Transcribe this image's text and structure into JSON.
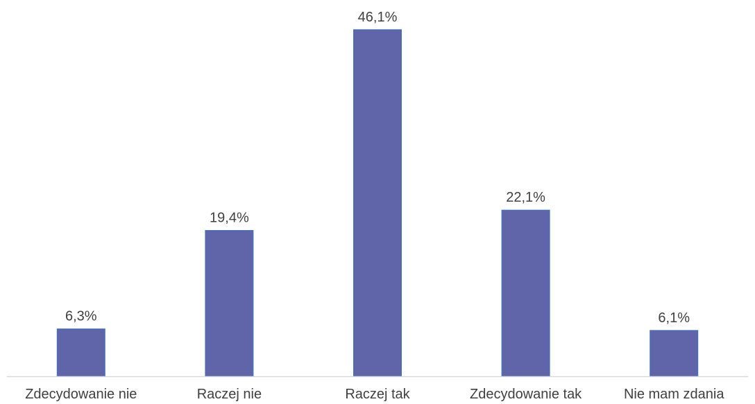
{
  "chart_data": {
    "type": "bar",
    "categories": [
      "Zdecydowanie nie",
      "Raczej nie",
      "Raczej tak",
      "Zdecydowanie tak",
      "Nie mam zdania"
    ],
    "values": [
      6.3,
      19.4,
      46.1,
      22.1,
      6.1
    ],
    "data_labels": [
      "6,3%",
      "19,4%",
      "46,1%",
      "22,1%",
      "6,1%"
    ],
    "title": "",
    "xlabel": "",
    "ylabel": "",
    "ylim": [
      0,
      50
    ],
    "grid": false,
    "legend": "none",
    "colors": {
      "bar": "#6064a8",
      "bar_border": "#3e75c8",
      "axis": "#d9d9d9",
      "text": "#404040"
    }
  }
}
